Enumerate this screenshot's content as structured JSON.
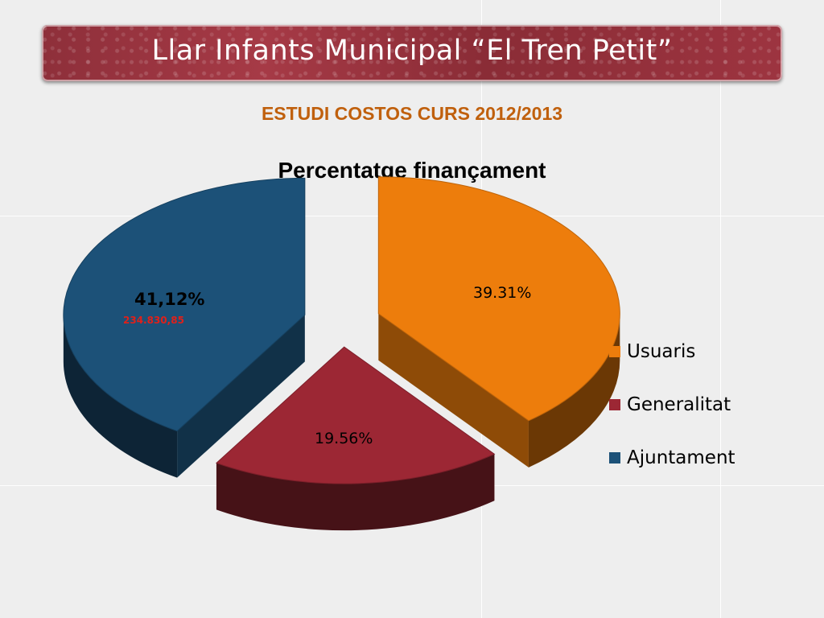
{
  "slide": {
    "title": "Llar Infants Municipal “El Tren Petit”",
    "subtitle": "ESTUDI COSTOS CURS 2012/2013"
  },
  "chart_data": {
    "type": "pie",
    "title": "Percentatge finançament",
    "categories": [
      "Usuaris",
      "Generalitat",
      "Ajuntament"
    ],
    "values": [
      39.31,
      19.56,
      41.12
    ],
    "data_labels": [
      "39.31%",
      "19.56%",
      "41,12%"
    ],
    "annotations": [
      "234.830,85"
    ],
    "colors": [
      "#ed7d0c",
      "#9c2734",
      "#1c5178"
    ],
    "exploded": true,
    "style_3d": true,
    "legend_position": "right"
  }
}
